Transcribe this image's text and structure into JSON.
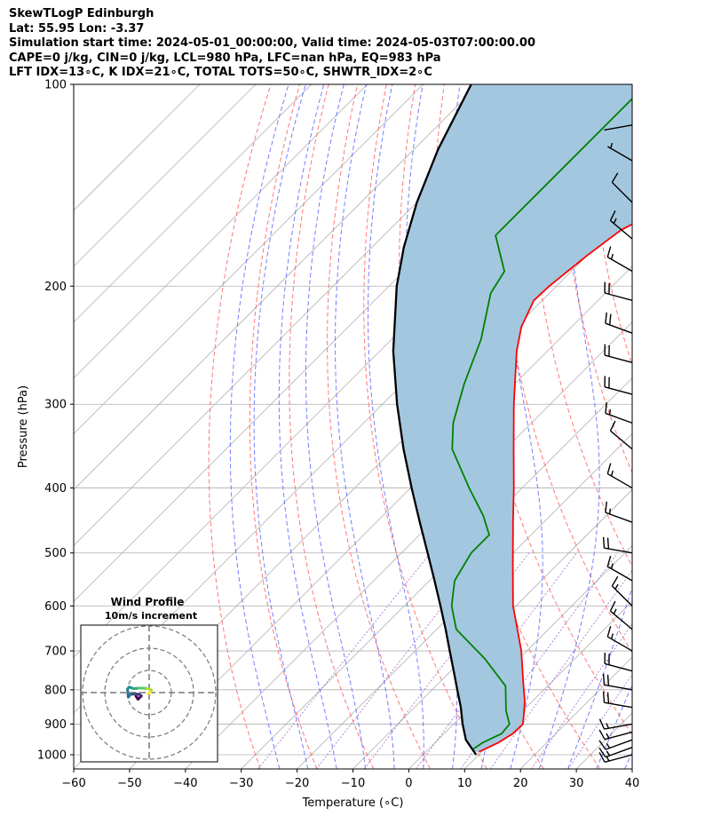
{
  "header": {
    "title": "SkewTLogP Edinburgh",
    "location": "Lat: 55.95   Lon: -3.37",
    "times": "Simulation start time: 2024-05-01_00:00:00, Valid time: 2024-05-03T07:00:00.00",
    "indices1": "CAPE=0 j/kg, CIN=0 j/kg, LCL=980 hPa, LFC=nan hPa, EQ=983 hPa",
    "indices2": "LFT IDX=13∘C, K IDX=21∘C, TOTAL TOTS=50∘C, SHWTR_IDX=2∘C"
  },
  "colors": {
    "temperature": "#ff0000",
    "dewpoint": "#008000",
    "parcel": "#000000",
    "cape_fill": "#a4c7e0",
    "dry_adiabat": "#ff6060",
    "moist_adiabat": "#5060ff",
    "mixing_ratio": "#9050c0",
    "isotherm": "#b0b0b0"
  },
  "chart_data": {
    "type": "skew-t log-p",
    "xlabel": "Temperature (∘C)",
    "ylabel": "Pressure (hPa)",
    "xlim": [
      -60,
      40
    ],
    "ylim": [
      1050,
      100
    ],
    "y_scale": "log",
    "x_ticks": [
      "−60",
      "−50",
      "−40",
      "−30",
      "−20",
      "−10",
      "0",
      "10",
      "20",
      "30",
      "40"
    ],
    "y_ticks": [
      "100",
      "200",
      "300",
      "400",
      "500",
      "600",
      "700",
      "800",
      "900",
      "1000"
    ],
    "grid": true,
    "series": [
      {
        "key": "temperature",
        "pressure": [
          990,
          960,
          930,
          900,
          870,
          830,
          780,
          700,
          640,
          600,
          520,
          450,
          400,
          350,
          300,
          250,
          230,
          210,
          200,
          180,
          165,
          155,
          140,
          125,
          115,
          100
        ],
        "temp": [
          9.5,
          11.3,
          12.3,
          12.4,
          10.8,
          8.5,
          5.0,
          -1.0,
          -6.5,
          -10.5,
          -18.0,
          -25.5,
          -31.5,
          -38.5,
          -46.5,
          -55.5,
          -59.0,
          -61.5,
          -61.3,
          -60.0,
          -58.5,
          -55.5,
          -56.0,
          -57.5,
          -56.5,
          -58.0
        ]
      },
      {
        "key": "dewpoint",
        "pressure": [
          980,
          960,
          930,
          900,
          860,
          790,
          720,
          650,
          600,
          550,
          500,
          470,
          440,
          400,
          350,
          320,
          280,
          240,
          205,
          190,
          168,
          100
        ],
        "temp": [
          8.0,
          8.5,
          10.3,
          10.0,
          7.0,
          2.5,
          -6.0,
          -16.5,
          -21.5,
          -25.5,
          -27.5,
          -27.5,
          -32.0,
          -39.5,
          -49.5,
          -54.0,
          -59.0,
          -64.0,
          -70.5,
          -72.0,
          -80.0,
          -80.0
        ]
      },
      {
        "key": "parcel",
        "pressure": [
          1000,
          950,
          900,
          850,
          800,
          750,
          700,
          650,
          600,
          550,
          500,
          450,
          400,
          350,
          300,
          250,
          200,
          175,
          150,
          125,
          100
        ],
        "temp": [
          9.5,
          5.0,
          1.6,
          -1.7,
          -5.5,
          -9.5,
          -13.8,
          -18.4,
          -23.5,
          -29.1,
          -35.3,
          -42.2,
          -49.8,
          -58.2,
          -67.4,
          -77.6,
          -88.6,
          -94.3,
          -100.0,
          -105.7,
          -111.4
        ]
      }
    ],
    "wind_barbs": [
      {
        "p": 1000,
        "speed_kt": 15,
        "dir_deg": 255
      },
      {
        "p": 975,
        "speed_kt": 15,
        "dir_deg": 250
      },
      {
        "p": 950,
        "speed_kt": 15,
        "dir_deg": 250
      },
      {
        "p": 925,
        "speed_kt": 15,
        "dir_deg": 255
      },
      {
        "p": 900,
        "speed_kt": 15,
        "dir_deg": 260
      },
      {
        "p": 850,
        "speed_kt": 20,
        "dir_deg": 280
      },
      {
        "p": 800,
        "speed_kt": 20,
        "dir_deg": 280
      },
      {
        "p": 750,
        "speed_kt": 20,
        "dir_deg": 285
      },
      {
        "p": 700,
        "speed_kt": 15,
        "dir_deg": 300
      },
      {
        "p": 650,
        "speed_kt": 15,
        "dir_deg": 310
      },
      {
        "p": 600,
        "speed_kt": 15,
        "dir_deg": 315
      },
      {
        "p": 550,
        "speed_kt": 15,
        "dir_deg": 300
      },
      {
        "p": 500,
        "speed_kt": 20,
        "dir_deg": 280
      },
      {
        "p": 450,
        "speed_kt": 15,
        "dir_deg": 290
      },
      {
        "p": 400,
        "speed_kt": 15,
        "dir_deg": 300
      },
      {
        "p": 350,
        "speed_kt": 10,
        "dir_deg": 310
      },
      {
        "p": 320,
        "speed_kt": 15,
        "dir_deg": 290
      },
      {
        "p": 290,
        "speed_kt": 20,
        "dir_deg": 285
      },
      {
        "p": 260,
        "speed_kt": 20,
        "dir_deg": 285
      },
      {
        "p": 235,
        "speed_kt": 20,
        "dir_deg": 290
      },
      {
        "p": 210,
        "speed_kt": 20,
        "dir_deg": 285
      },
      {
        "p": 190,
        "speed_kt": 15,
        "dir_deg": 300
      },
      {
        "p": 170,
        "speed_kt": 15,
        "dir_deg": 310
      },
      {
        "p": 150,
        "speed_kt": 10,
        "dir_deg": 315
      },
      {
        "p": 130,
        "speed_kt": 5,
        "dir_deg": 300
      },
      {
        "p": 115,
        "speed_kt": 2,
        "dir_deg": 260
      }
    ],
    "hodograph": {
      "title": "Wind Profile",
      "subtitle": "10m/s increment",
      "rings_ms": [
        10,
        20,
        30
      ],
      "u": [
        -6.0,
        -5.0,
        -3.5,
        -4.5,
        -6.0,
        -8.5,
        -9.3,
        -9.8,
        -9.0,
        -7.0,
        -4.5,
        -2.5,
        -1.0,
        1.0,
        0.5,
        -0.5
      ],
      "v": [
        -1.5,
        -3.0,
        -1.5,
        -0.8,
        -0.6,
        -0.8,
        -2.0,
        1.5,
        2.5,
        1.8,
        2.0,
        2.0,
        1.8,
        1.2,
        0.2,
        -0.5
      ]
    }
  }
}
